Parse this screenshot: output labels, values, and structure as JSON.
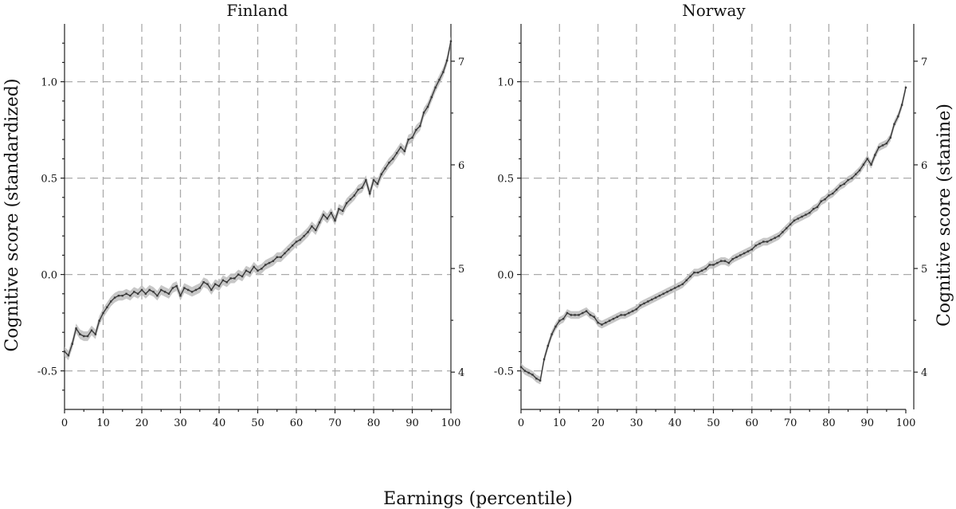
{
  "xlabel": "Earnings (percentile)",
  "ylabel_left": "Cognitive score (standardized)",
  "ylabel_right": "Cognitive score (stanine)",
  "line_color": "#3a3a3a",
  "band_color": "#bdbdbd",
  "chart_data": [
    {
      "type": "line",
      "title": "Finland",
      "xlim": [
        0,
        100
      ],
      "ylim": [
        -0.7,
        1.3
      ],
      "x_ticks": [
        "0",
        "10",
        "20",
        "30",
        "40",
        "50",
        "60",
        "70",
        "80",
        "90",
        "100"
      ],
      "y_ticks": [
        "1.0",
        "0.5",
        "0.0",
        "-0.5"
      ],
      "y_tick_values": [
        1.0,
        0.5,
        0.0,
        -0.5
      ],
      "y2_ticks": [
        "7",
        "6",
        "5",
        "4"
      ],
      "y2_tick_values": [
        7,
        6,
        5,
        4
      ],
      "y2_ylim": [
        3.64,
        7.36
      ],
      "grid": true,
      "series": [
        {
          "ci_halfwidth": 0.025,
          "points": [
            [
              0,
              -0.4
            ],
            [
              1,
              -0.42
            ],
            [
              2,
              -0.36
            ],
            [
              3,
              -0.28
            ],
            [
              4,
              -0.31
            ],
            [
              5,
              -0.32
            ],
            [
              6,
              -0.32
            ],
            [
              7,
              -0.29
            ],
            [
              8,
              -0.31
            ],
            [
              9,
              -0.24
            ],
            [
              10,
              -0.2
            ],
            [
              11,
              -0.17
            ],
            [
              12,
              -0.14
            ],
            [
              13,
              -0.12
            ],
            [
              14,
              -0.11
            ],
            [
              15,
              -0.11
            ],
            [
              16,
              -0.1
            ],
            [
              17,
              -0.11
            ],
            [
              18,
              -0.09
            ],
            [
              19,
              -0.1
            ],
            [
              20,
              -0.08
            ],
            [
              21,
              -0.1
            ],
            [
              22,
              -0.08
            ],
            [
              23,
              -0.09
            ],
            [
              24,
              -0.11
            ],
            [
              25,
              -0.08
            ],
            [
              26,
              -0.09
            ],
            [
              27,
              -0.1
            ],
            [
              28,
              -0.07
            ],
            [
              29,
              -0.06
            ],
            [
              30,
              -0.11
            ],
            [
              31,
              -0.07
            ],
            [
              32,
              -0.08
            ],
            [
              33,
              -0.09
            ],
            [
              34,
              -0.08
            ],
            [
              35,
              -0.07
            ],
            [
              36,
              -0.04
            ],
            [
              37,
              -0.05
            ],
            [
              38,
              -0.08
            ],
            [
              39,
              -0.05
            ],
            [
              40,
              -0.06
            ],
            [
              41,
              -0.03
            ],
            [
              42,
              -0.04
            ],
            [
              43,
              -0.02
            ],
            [
              44,
              -0.02
            ],
            [
              45,
              0.0
            ],
            [
              46,
              -0.01
            ],
            [
              47,
              0.02
            ],
            [
              48,
              0.01
            ],
            [
              49,
              0.04
            ],
            [
              50,
              0.02
            ],
            [
              51,
              0.03
            ],
            [
              52,
              0.05
            ],
            [
              53,
              0.06
            ],
            [
              54,
              0.07
            ],
            [
              55,
              0.09
            ],
            [
              56,
              0.09
            ],
            [
              57,
              0.11
            ],
            [
              58,
              0.13
            ],
            [
              59,
              0.15
            ],
            [
              60,
              0.17
            ],
            [
              61,
              0.18
            ],
            [
              62,
              0.2
            ],
            [
              63,
              0.22
            ],
            [
              64,
              0.25
            ],
            [
              65,
              0.23
            ],
            [
              66,
              0.27
            ],
            [
              67,
              0.31
            ],
            [
              68,
              0.29
            ],
            [
              69,
              0.32
            ],
            [
              70,
              0.28
            ],
            [
              71,
              0.34
            ],
            [
              72,
              0.33
            ],
            [
              73,
              0.37
            ],
            [
              74,
              0.39
            ],
            [
              75,
              0.41
            ],
            [
              76,
              0.44
            ],
            [
              77,
              0.45
            ],
            [
              78,
              0.49
            ],
            [
              79,
              0.42
            ],
            [
              80,
              0.49
            ],
            [
              81,
              0.47
            ],
            [
              82,
              0.52
            ],
            [
              83,
              0.55
            ],
            [
              84,
              0.58
            ],
            [
              85,
              0.6
            ],
            [
              86,
              0.63
            ],
            [
              87,
              0.66
            ],
            [
              88,
              0.64
            ],
            [
              89,
              0.7
            ],
            [
              90,
              0.71
            ],
            [
              91,
              0.75
            ],
            [
              92,
              0.77
            ],
            [
              93,
              0.84
            ],
            [
              94,
              0.87
            ],
            [
              95,
              0.92
            ],
            [
              96,
              0.97
            ],
            [
              97,
              1.01
            ],
            [
              98,
              1.05
            ],
            [
              99,
              1.11
            ],
            [
              100,
              1.21
            ]
          ]
        }
      ]
    },
    {
      "type": "line",
      "title": "Norway",
      "xlim": [
        0,
        100
      ],
      "ylim": [
        -0.7,
        1.3
      ],
      "x_ticks": [
        "0",
        "10",
        "20",
        "30",
        "40",
        "50",
        "60",
        "70",
        "80",
        "90",
        "100"
      ],
      "y_ticks": [
        "1.0",
        "0.5",
        "0.0",
        "-0.5"
      ],
      "y_tick_values": [
        1.0,
        0.5,
        0.0,
        -0.5
      ],
      "y2_ticks": [
        "7",
        "6",
        "5",
        "4"
      ],
      "y2_tick_values": [
        7,
        6,
        5,
        4
      ],
      "y2_ylim": [
        3.64,
        7.36
      ],
      "grid": true,
      "series": [
        {
          "ci_halfwidth": 0.02,
          "points": [
            [
              0,
              -0.48
            ],
            [
              1,
              -0.5
            ],
            [
              2,
              -0.51
            ],
            [
              3,
              -0.52
            ],
            [
              4,
              -0.54
            ],
            [
              5,
              -0.55
            ],
            [
              6,
              -0.44
            ],
            [
              7,
              -0.37
            ],
            [
              8,
              -0.31
            ],
            [
              9,
              -0.27
            ],
            [
              10,
              -0.24
            ],
            [
              11,
              -0.23
            ],
            [
              12,
              -0.2
            ],
            [
              13,
              -0.21
            ],
            [
              14,
              -0.21
            ],
            [
              15,
              -0.21
            ],
            [
              16,
              -0.2
            ],
            [
              17,
              -0.19
            ],
            [
              18,
              -0.21
            ],
            [
              19,
              -0.22
            ],
            [
              20,
              -0.25
            ],
            [
              21,
              -0.26
            ],
            [
              22,
              -0.25
            ],
            [
              23,
              -0.24
            ],
            [
              24,
              -0.23
            ],
            [
              25,
              -0.22
            ],
            [
              26,
              -0.21
            ],
            [
              27,
              -0.21
            ],
            [
              28,
              -0.2
            ],
            [
              29,
              -0.19
            ],
            [
              30,
              -0.18
            ],
            [
              31,
              -0.16
            ],
            [
              32,
              -0.15
            ],
            [
              33,
              -0.14
            ],
            [
              34,
              -0.13
            ],
            [
              35,
              -0.12
            ],
            [
              36,
              -0.11
            ],
            [
              37,
              -0.1
            ],
            [
              38,
              -0.09
            ],
            [
              39,
              -0.08
            ],
            [
              40,
              -0.07
            ],
            [
              41,
              -0.06
            ],
            [
              42,
              -0.05
            ],
            [
              43,
              -0.03
            ],
            [
              44,
              -0.01
            ],
            [
              45,
              0.01
            ],
            [
              46,
              0.01
            ],
            [
              47,
              0.02
            ],
            [
              48,
              0.03
            ],
            [
              49,
              0.05
            ],
            [
              50,
              0.05
            ],
            [
              51,
              0.06
            ],
            [
              52,
              0.07
            ],
            [
              53,
              0.07
            ],
            [
              54,
              0.06
            ],
            [
              55,
              0.08
            ],
            [
              56,
              0.09
            ],
            [
              57,
              0.1
            ],
            [
              58,
              0.11
            ],
            [
              59,
              0.12
            ],
            [
              60,
              0.13
            ],
            [
              61,
              0.15
            ],
            [
              62,
              0.16
            ],
            [
              63,
              0.17
            ],
            [
              64,
              0.17
            ],
            [
              65,
              0.18
            ],
            [
              66,
              0.19
            ],
            [
              67,
              0.2
            ],
            [
              68,
              0.22
            ],
            [
              69,
              0.24
            ],
            [
              70,
              0.26
            ],
            [
              71,
              0.28
            ],
            [
              72,
              0.29
            ],
            [
              73,
              0.3
            ],
            [
              74,
              0.31
            ],
            [
              75,
              0.32
            ],
            [
              76,
              0.34
            ],
            [
              77,
              0.35
            ],
            [
              78,
              0.38
            ],
            [
              79,
              0.39
            ],
            [
              80,
              0.41
            ],
            [
              81,
              0.42
            ],
            [
              82,
              0.44
            ],
            [
              83,
              0.46
            ],
            [
              84,
              0.47
            ],
            [
              85,
              0.49
            ],
            [
              86,
              0.5
            ],
            [
              87,
              0.52
            ],
            [
              88,
              0.54
            ],
            [
              89,
              0.57
            ],
            [
              90,
              0.6
            ],
            [
              91,
              0.57
            ],
            [
              92,
              0.62
            ],
            [
              93,
              0.66
            ],
            [
              94,
              0.67
            ],
            [
              95,
              0.68
            ],
            [
              96,
              0.71
            ],
            [
              97,
              0.78
            ],
            [
              98,
              0.82
            ],
            [
              99,
              0.88
            ],
            [
              100,
              0.97
            ]
          ]
        }
      ]
    }
  ]
}
